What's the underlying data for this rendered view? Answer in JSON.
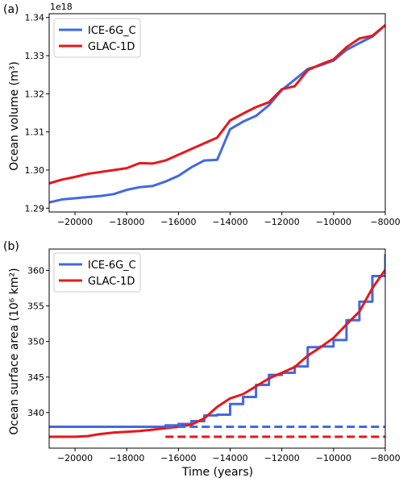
{
  "colors": {
    "ice": "#4169e1",
    "glac": "#e8171b"
  },
  "chart_data": [
    {
      "type": "line",
      "panel_label": "(a)",
      "ylabel": "Ocean volume (m³)",
      "xlabel": "",
      "y_offset_label": "1e18",
      "xlim": [
        -21000,
        -8000
      ],
      "ylim": [
        1.289,
        1.341
      ],
      "x_ticks": [
        -20000,
        -18000,
        -16000,
        -14000,
        -12000,
        -10000,
        -8000
      ],
      "y_ticks": [
        1.29,
        1.3,
        1.31,
        1.32,
        1.33,
        1.34
      ],
      "y_tick_labels": [
        "1.29",
        "1.30",
        "1.31",
        "1.32",
        "1.33",
        "1.34"
      ],
      "legend": "top-left",
      "series": [
        {
          "name": "ICE-6G_C",
          "color": "#4169e1",
          "style": "solid",
          "x": [
            -21000,
            -20500,
            -20000,
            -19500,
            -19000,
            -18500,
            -18000,
            -17500,
            -17000,
            -16500,
            -16000,
            -15500,
            -15000,
            -14500,
            -14000,
            -13500,
            -13000,
            -12500,
            -12000,
            -11500,
            -11000,
            -10500,
            -10000,
            -9500,
            -9000,
            -8500,
            -8000
          ],
          "y": [
            1.2915,
            1.2923,
            1.2926,
            1.2929,
            1.2932,
            1.2937,
            1.2948,
            1.2955,
            1.2958,
            1.297,
            1.2985,
            1.3007,
            1.3025,
            1.3027,
            1.3107,
            1.3127,
            1.3142,
            1.317,
            1.321,
            1.3237,
            1.3265,
            1.3275,
            1.3287,
            1.3315,
            1.3333,
            1.335,
            1.338
          ]
        },
        {
          "name": "GLAC-1D",
          "color": "#e8171b",
          "style": "solid",
          "x": [
            -21000,
            -20500,
            -20000,
            -19500,
            -19000,
            -18500,
            -18000,
            -17500,
            -17000,
            -16500,
            -16000,
            -15500,
            -15000,
            -14500,
            -14000,
            -13500,
            -13000,
            -12500,
            -12000,
            -11500,
            -11000,
            -10500,
            -10000,
            -9500,
            -9000,
            -8500,
            -8000
          ],
          "y": [
            1.2965,
            1.2975,
            1.2982,
            1.299,
            1.2995,
            1.3,
            1.3005,
            1.3018,
            1.3017,
            1.3025,
            1.304,
            1.3055,
            1.307,
            1.3085,
            1.313,
            1.3148,
            1.3165,
            1.3178,
            1.3212,
            1.322,
            1.3262,
            1.3277,
            1.329,
            1.3322,
            1.3345,
            1.3352,
            1.338
          ]
        }
      ]
    },
    {
      "type": "line",
      "panel_label": "(b)",
      "ylabel": "Ocean surface area (10⁶ km²)",
      "xlabel": "Time (years)",
      "xlim": [
        -21000,
        -8000
      ],
      "ylim": [
        335,
        363
      ],
      "x_ticks": [
        -20000,
        -18000,
        -16000,
        -14000,
        -12000,
        -10000,
        -8000
      ],
      "x_tick_labels": [
        "−20000",
        "−18000",
        "−16000",
        "−14000",
        "−12000",
        "−10000",
        "−8000"
      ],
      "y_ticks": [
        340,
        345,
        350,
        355,
        360
      ],
      "y_tick_labels": [
        "340",
        "345",
        "350",
        "355",
        "360"
      ],
      "legend": "top-left",
      "series": [
        {
          "name": "ICE-6G_C",
          "color": "#4169e1",
          "style": "step",
          "x": [
            -21000,
            -16500,
            -16000,
            -15500,
            -15000,
            -14500,
            -14000,
            -13500,
            -13000,
            -12500,
            -12000,
            -11500,
            -11000,
            -10500,
            -10000,
            -9500,
            -9000,
            -8500,
            -8000
          ],
          "y": [
            338.0,
            338.2,
            338.4,
            338.8,
            339.6,
            339.7,
            341.2,
            342.2,
            343.9,
            345.3,
            345.6,
            346.5,
            349.2,
            349.3,
            350.2,
            353.0,
            355.6,
            359.2,
            362.3
          ]
        },
        {
          "name": "GLAC-1D",
          "color": "#e8171b",
          "style": "solid",
          "x": [
            -21000,
            -20500,
            -20000,
            -19500,
            -19000,
            -18500,
            -18000,
            -17500,
            -17000,
            -16500,
            -16000,
            -15500,
            -15000,
            -14500,
            -14000,
            -13500,
            -13000,
            -12500,
            -12000,
            -11500,
            -11000,
            -10500,
            -10000,
            -9500,
            -9000,
            -8500,
            -8000
          ],
          "y": [
            336.6,
            336.6,
            336.6,
            336.7,
            337.0,
            337.2,
            337.3,
            337.4,
            337.6,
            337.8,
            338.0,
            338.3,
            339.2,
            340.8,
            342.0,
            342.6,
            343.7,
            344.8,
            345.6,
            346.4,
            348.0,
            349.2,
            350.5,
            352.4,
            354.2,
            357.5,
            360.1
          ]
        },
        {
          "name": "",
          "color": "#4169e1",
          "style": "dashed",
          "x": [
            -16500,
            -8000
          ],
          "y": [
            338.0,
            338.0
          ]
        },
        {
          "name": "",
          "color": "#e8171b",
          "style": "dashed",
          "x": [
            -16500,
            -8000
          ],
          "y": [
            336.6,
            336.6
          ]
        }
      ]
    }
  ]
}
